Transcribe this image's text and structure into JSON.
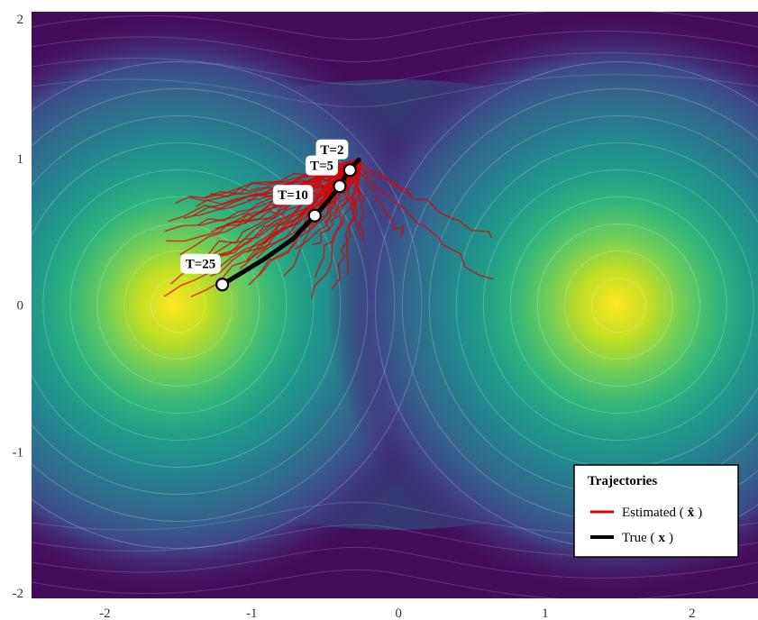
{
  "chart_data": {
    "type": "line",
    "title": "",
    "xlabel": "",
    "ylabel": "",
    "xlim": [
      -2.5,
      2.45
    ],
    "ylim": [
      -2,
      2
    ],
    "x_ticks": [
      "-2",
      "-1",
      "0",
      "1",
      "2"
    ],
    "y_ticks": [
      "2",
      "1",
      "0",
      "-1",
      "-2"
    ],
    "background": {
      "type": "heatmap",
      "colormap": "viridis",
      "wells": [
        {
          "x": -1.5,
          "y": 0
        },
        {
          "x": 1.5,
          "y": 0
        }
      ],
      "contours": true
    },
    "legend": {
      "title": "Trajectories",
      "position": "bottom-right",
      "entries": [
        {
          "label": "Estimated (",
          "symbol": "x̂",
          "label_end": ")",
          "color": "#dd0000"
        },
        {
          "label": "True (",
          "symbol": "x",
          "label_end": ")",
          "color": "#000000"
        }
      ]
    },
    "series": [
      {
        "name": "True (x)",
        "color": "#000000",
        "x": [
          -0.27,
          -0.34,
          -0.4,
          -0.48,
          -0.57,
          -0.72,
          -0.92,
          -1.1,
          -1.2
        ],
        "y": [
          0.99,
          0.92,
          0.81,
          0.71,
          0.61,
          0.45,
          0.31,
          0.2,
          0.14
        ]
      }
    ],
    "estimated_spread": {
      "color": "#dd0000",
      "count": 60,
      "start": {
        "x": -0.27,
        "y": 0.99
      }
    },
    "markers": [
      {
        "label": "T=2",
        "x": -0.33,
        "y": 0.92
      },
      {
        "label": "T=5",
        "x": -0.4,
        "y": 0.81
      },
      {
        "label": "T=10",
        "x": -0.57,
        "y": 0.61
      },
      {
        "label": "T=25",
        "x": -1.2,
        "y": 0.14
      }
    ]
  }
}
